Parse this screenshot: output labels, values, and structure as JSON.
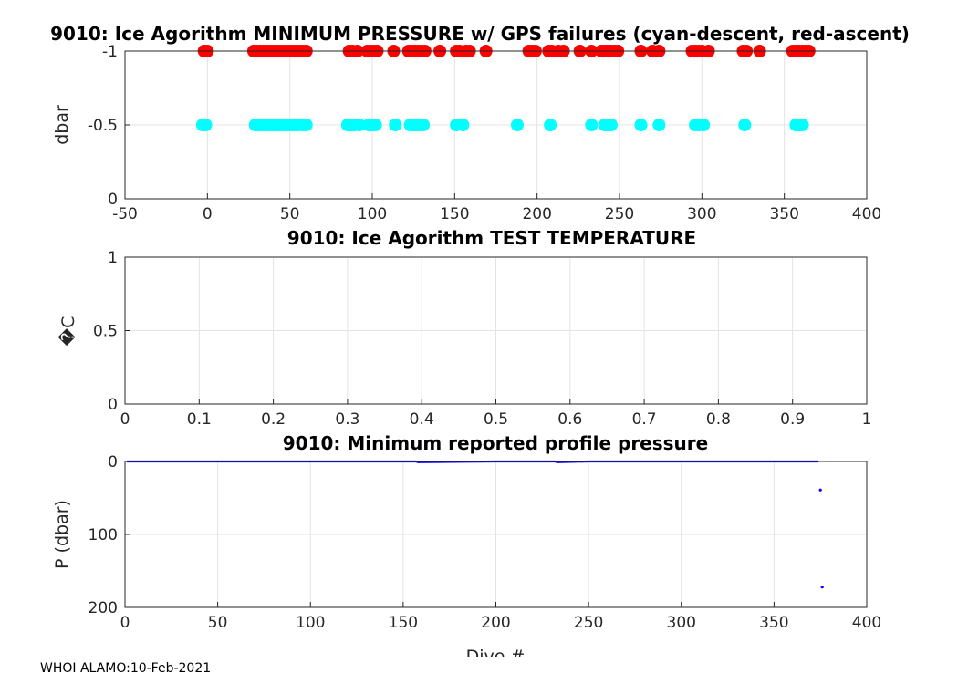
{
  "footer": "WHOI ALAMO:10-Feb-2021",
  "colors": {
    "descent": "#00ffff",
    "ascent": "#ff0000",
    "profile": "#0000ff",
    "grid": "#e3e3e3",
    "axis": "#262626"
  },
  "chart_data": [
    {
      "type": "scatter",
      "title": "9010: Ice Agorithm MINIMUM PRESSURE w/ GPS failures (cyan-descent, red-ascent)",
      "xlabel": "",
      "ylabel": "dbar",
      "xlim": [
        -50,
        400
      ],
      "ylim": [
        0,
        -1
      ],
      "y_reversed": true,
      "xticks": [
        -50,
        0,
        50,
        100,
        150,
        200,
        250,
        300,
        350,
        400
      ],
      "yticks": [
        -1,
        -0.5,
        0
      ],
      "grid": true,
      "series": [
        {
          "color": "descent",
          "y": -0.5,
          "x": [
            -3,
            -1,
            29,
            31,
            33,
            35,
            36,
            38,
            40,
            42,
            44,
            46,
            48,
            49,
            51,
            53,
            55,
            58,
            60,
            85,
            87,
            89,
            92,
            98,
            100,
            102,
            114,
            123,
            125,
            127,
            129,
            131,
            151,
            155,
            188,
            208,
            233,
            241,
            243,
            245,
            263,
            274,
            296,
            298,
            301,
            326,
            357,
            359,
            361
          ]
        },
        {
          "color": "ascent",
          "y": -1,
          "x": [
            -2,
            0,
            28,
            30,
            32,
            34,
            36,
            38,
            40,
            42,
            44,
            46,
            48,
            50,
            52,
            54,
            56,
            58,
            60,
            86,
            88,
            91,
            97,
            99,
            101,
            103,
            113,
            122,
            124,
            126,
            128,
            130,
            132,
            141,
            151,
            153,
            157,
            159,
            169,
            195,
            197,
            199,
            207,
            209,
            213,
            216,
            226,
            233,
            239,
            241,
            243,
            245,
            247,
            249,
            263,
            270,
            274,
            294,
            296,
            298,
            300,
            304,
            325,
            327,
            335,
            355,
            357,
            359,
            361,
            363,
            365
          ]
        }
      ]
    },
    {
      "type": "scatter",
      "title": "9010: Ice Agorithm TEST TEMPERATURE",
      "xlabel": "",
      "ylabel": "�C",
      "xlim": [
        0,
        1
      ],
      "ylim": [
        0,
        1
      ],
      "xticks": [
        0,
        0.1,
        0.2,
        0.3,
        0.4,
        0.5,
        0.6,
        0.7,
        0.8,
        0.9,
        1
      ],
      "yticks": [
        0,
        0.5,
        1
      ],
      "grid": true,
      "series": []
    },
    {
      "type": "line",
      "title": "9010: Minimum reported profile pressure",
      "xlabel": "Dive #",
      "ylabel": "P (dbar)",
      "xlim": [
        0,
        400
      ],
      "ylim": [
        0,
        200
      ],
      "y_reversed": true,
      "xticks": [
        0,
        50,
        100,
        150,
        200,
        250,
        300,
        350,
        400
      ],
      "yticks": [
        0,
        100,
        200
      ],
      "grid": true,
      "series": [
        {
          "color": "profile",
          "x": [
            1,
            50,
            100,
            150,
            157,
            158,
            200,
            232,
            233,
            250,
            300,
            350,
            374
          ],
          "y": [
            0,
            0,
            0,
            0,
            0,
            1,
            0,
            0,
            1,
            0,
            0,
            0,
            0
          ]
        },
        {
          "color": "profile",
          "points_only": true,
          "x": [
            375,
            376
          ],
          "y": [
            39,
            172
          ]
        }
      ]
    }
  ]
}
